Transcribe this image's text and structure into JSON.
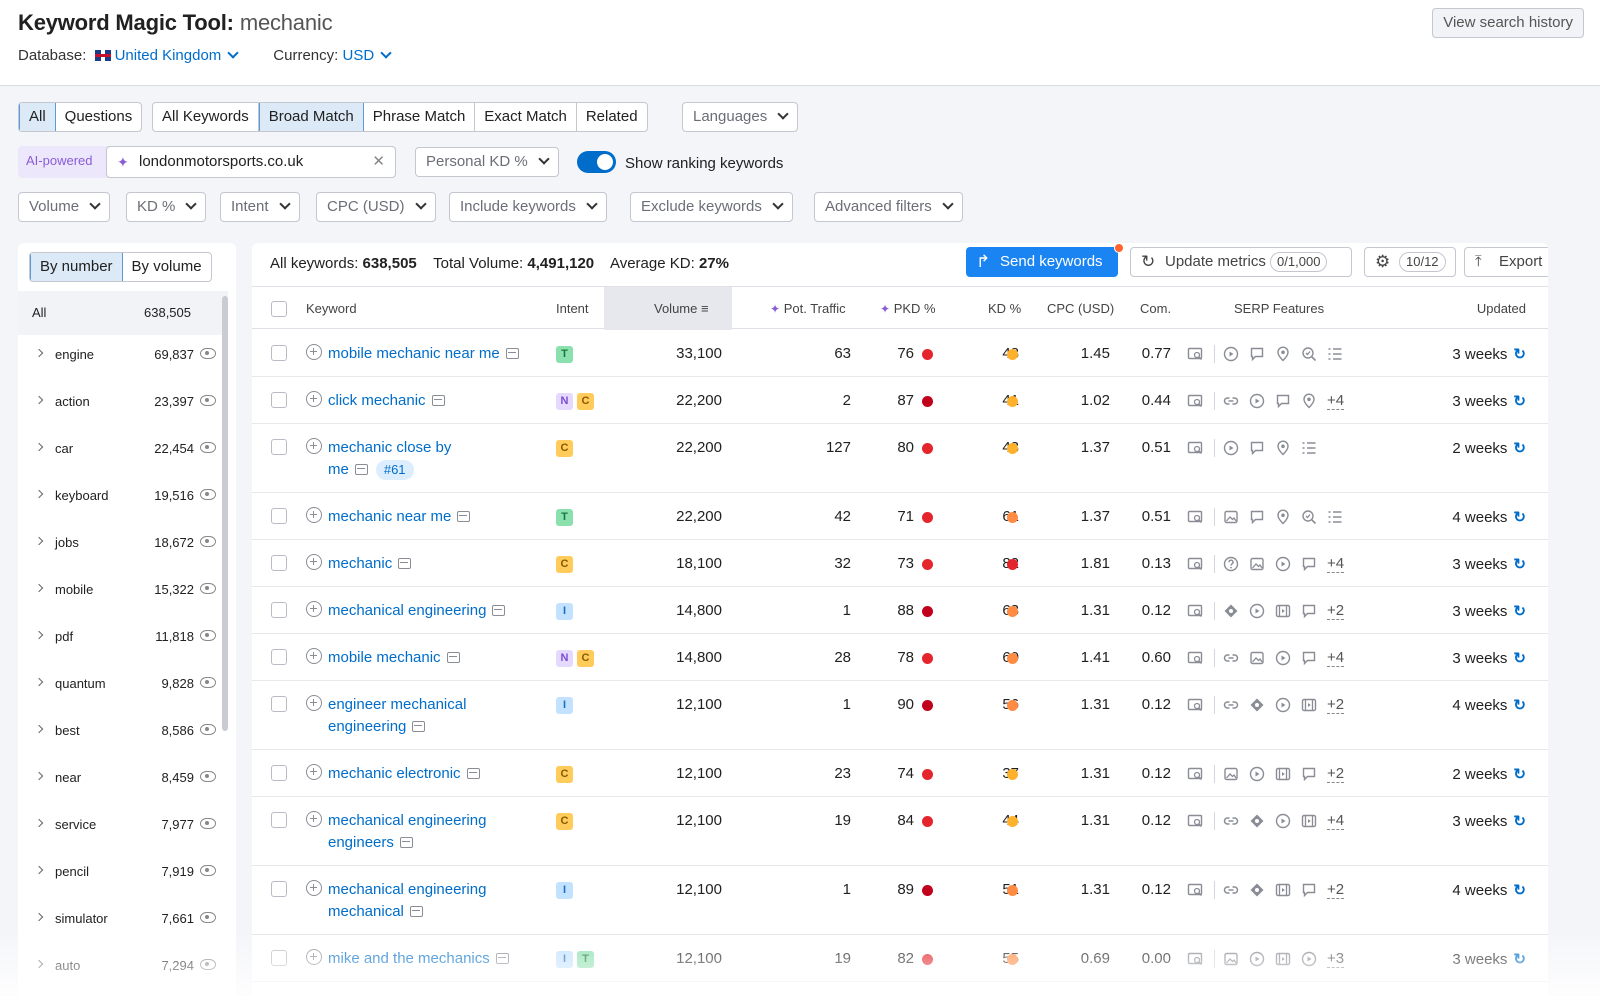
{
  "header": {
    "title": "Keyword Magic Tool:",
    "query": "mechanic",
    "database_label": "Database:",
    "database_value": "United Kingdom",
    "currency_label": "Currency:",
    "currency_value": "USD",
    "history_button": "View search history"
  },
  "tabs1": [
    "All",
    "Questions"
  ],
  "tabs2": [
    "All Keywords",
    "Broad Match",
    "Phrase Match",
    "Exact Match",
    "Related"
  ],
  "languages": "Languages",
  "ai": {
    "label": "AI-powered",
    "domain": "londonmotorsports.co.uk",
    "personal_kd": "Personal KD %",
    "toggle_label": "Show ranking keywords"
  },
  "filters": [
    "Volume",
    "KD %",
    "Intent",
    "CPC (USD)",
    "Include keywords",
    "Exclude keywords",
    "Advanced filters"
  ],
  "left": {
    "seg": [
      "By number",
      "By volume"
    ],
    "all_label": "All",
    "all_value": "638,505",
    "groups": [
      {
        "n": "engine",
        "v": "69,837"
      },
      {
        "n": "action",
        "v": "23,397"
      },
      {
        "n": "car",
        "v": "22,454"
      },
      {
        "n": "keyboard",
        "v": "19,516"
      },
      {
        "n": "jobs",
        "v": "18,672"
      },
      {
        "n": "mobile",
        "v": "15,322"
      },
      {
        "n": "pdf",
        "v": "11,818"
      },
      {
        "n": "quantum",
        "v": "9,828"
      },
      {
        "n": "best",
        "v": "8,586"
      },
      {
        "n": "near",
        "v": "8,459"
      },
      {
        "n": "service",
        "v": "7,977"
      },
      {
        "n": "pencil",
        "v": "7,919"
      },
      {
        "n": "simulator",
        "v": "7,661"
      },
      {
        "n": "auto",
        "v": "7,294"
      }
    ]
  },
  "main": {
    "all_kw_label": "All keywords:",
    "all_kw_value": "638,505",
    "total_vol_label": "Total Volume:",
    "total_vol_value": "4,491,120",
    "avg_kd_label": "Average KD:",
    "avg_kd_value": "27%",
    "send": "Send keywords",
    "update": "Update metrics",
    "update_count": "0/1,000",
    "settings_count": "10/12",
    "export": "Export"
  },
  "columns": [
    "Keyword",
    "Intent",
    "Volume",
    "Pot. Traffic",
    "PKD %",
    "KD %",
    "CPC (USD)",
    "Com.",
    "SERP Features",
    "Updated"
  ],
  "rows": [
    {
      "kw1": "mobile mechanic near me",
      "kw2": "",
      "rank": "",
      "intent": [
        "T"
      ],
      "vol": "33,100",
      "pot": "63",
      "pkd": "76",
      "pkdc": "d-red",
      "kd": "48",
      "kdc": "d-yel",
      "cpc": "1.45",
      "com": "0.77",
      "serp": [
        "play",
        "comment",
        "pin",
        "search",
        "list"
      ],
      "more": "",
      "upd": "3 weeks"
    },
    {
      "kw1": "click mechanic",
      "kw2": "",
      "rank": "",
      "intent": [
        "N",
        "C"
      ],
      "vol": "22,200",
      "pot": "2",
      "pkd": "87",
      "pkdc": "d-dred",
      "kd": "41",
      "kdc": "d-yel",
      "cpc": "1.02",
      "com": "0.44",
      "serp": [
        "link",
        "play",
        "comment",
        "pin"
      ],
      "more": "+4",
      "upd": "3 weeks"
    },
    {
      "kw1": "mechanic close by",
      "kw2": "me",
      "rank": "#61",
      "intent": [
        "C"
      ],
      "vol": "22,200",
      "pot": "127",
      "pkd": "80",
      "pkdc": "d-red",
      "kd": "43",
      "kdc": "d-yel",
      "cpc": "1.37",
      "com": "0.51",
      "serp": [
        "play",
        "comment",
        "pin",
        "list"
      ],
      "more": "",
      "upd": "2 weeks"
    },
    {
      "kw1": "mechanic near me",
      "kw2": "",
      "rank": "",
      "intent": [
        "T"
      ],
      "vol": "22,200",
      "pot": "42",
      "pkd": "71",
      "pkdc": "d-red",
      "kd": "61",
      "kdc": "d-org",
      "cpc": "1.37",
      "com": "0.51",
      "serp": [
        "image",
        "comment",
        "pin",
        "search",
        "list"
      ],
      "more": "",
      "upd": "4 weeks"
    },
    {
      "kw1": "mechanic",
      "kw2": "",
      "rank": "",
      "intent": [
        "C"
      ],
      "vol": "18,100",
      "pot": "32",
      "pkd": "73",
      "pkdc": "d-red",
      "kd": "82",
      "kdc": "d-red",
      "cpc": "1.81",
      "com": "0.13",
      "serp": [
        "question",
        "image",
        "play",
        "comment"
      ],
      "more": "+4",
      "upd": "3 weeks"
    },
    {
      "kw1": "mechanical engineering",
      "kw2": "",
      "rank": "",
      "intent": [
        "I"
      ],
      "vol": "14,800",
      "pot": "1",
      "pkd": "88",
      "pkdc": "d-dred",
      "kd": "63",
      "kdc": "d-org",
      "cpc": "1.31",
      "com": "0.12",
      "serp": [
        "diamond",
        "play",
        "video",
        "comment"
      ],
      "more": "+2",
      "upd": "3 weeks"
    },
    {
      "kw1": "mobile mechanic",
      "kw2": "",
      "rank": "",
      "intent": [
        "N",
        "C"
      ],
      "vol": "14,800",
      "pot": "28",
      "pkd": "78",
      "pkdc": "d-red",
      "kd": "60",
      "kdc": "d-org",
      "cpc": "1.41",
      "com": "0.60",
      "serp": [
        "link",
        "image",
        "play",
        "comment"
      ],
      "more": "+4",
      "upd": "3 weeks"
    },
    {
      "kw1": "engineer mechanical",
      "kw2": "engineering",
      "rank": "",
      "intent": [
        "I"
      ],
      "vol": "12,100",
      "pot": "1",
      "pkd": "90",
      "pkdc": "d-dred",
      "kd": "56",
      "kdc": "d-org",
      "cpc": "1.31",
      "com": "0.12",
      "serp": [
        "link",
        "diamond",
        "play",
        "video"
      ],
      "more": "+2",
      "upd": "4 weeks"
    },
    {
      "kw1": "mechanic electronic",
      "kw2": "",
      "rank": "",
      "intent": [
        "C"
      ],
      "vol": "12,100",
      "pot": "23",
      "pkd": "74",
      "pkdc": "d-red",
      "kd": "37",
      "kdc": "d-yel",
      "cpc": "1.31",
      "com": "0.12",
      "serp": [
        "image",
        "play",
        "video",
        "comment"
      ],
      "more": "+2",
      "upd": "2 weeks"
    },
    {
      "kw1": "mechanical engineering",
      "kw2": "engineers",
      "rank": "",
      "intent": [
        "C"
      ],
      "vol": "12,100",
      "pot": "19",
      "pkd": "84",
      "pkdc": "d-red",
      "kd": "44",
      "kdc": "d-yel",
      "cpc": "1.31",
      "com": "0.12",
      "serp": [
        "link",
        "diamond",
        "play",
        "video"
      ],
      "more": "+4",
      "upd": "3 weeks"
    },
    {
      "kw1": "mechanical engineering",
      "kw2": "mechanical",
      "rank": "",
      "intent": [
        "I"
      ],
      "vol": "12,100",
      "pot": "1",
      "pkd": "89",
      "pkdc": "d-dred",
      "kd": "51",
      "kdc": "d-org",
      "cpc": "1.31",
      "com": "0.12",
      "serp": [
        "link",
        "diamond",
        "video",
        "comment"
      ],
      "more": "+2",
      "upd": "4 weeks"
    },
    {
      "kw1": "mike and the mechanics",
      "kw2": "",
      "rank": "",
      "intent": [
        "I",
        "T"
      ],
      "vol": "12,100",
      "pot": "19",
      "pkd": "82",
      "pkdc": "d-red",
      "kd": "55",
      "kdc": "d-org",
      "cpc": "0.69",
      "com": "0.00",
      "serp": [
        "image",
        "play",
        "video",
        "play"
      ],
      "more": "+3",
      "upd": "3 weeks"
    }
  ]
}
